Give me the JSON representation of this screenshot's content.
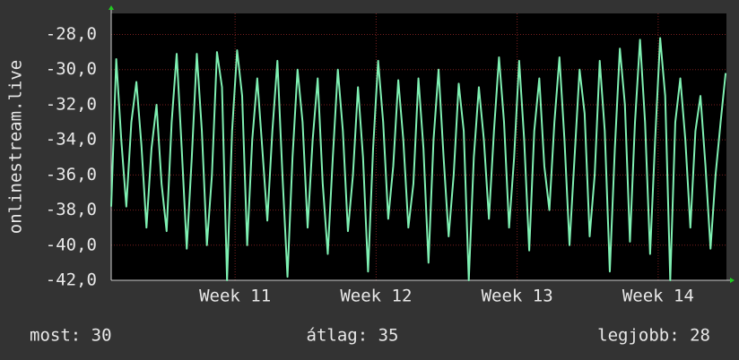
{
  "chart_data": {
    "type": "line",
    "y_label": "onlinestream.live",
    "x": [
      0,
      0.25,
      0.5,
      0.75,
      1,
      1.25,
      1.5,
      1.75,
      2,
      2.25,
      2.5,
      2.75,
      3,
      3.25,
      3.5,
      3.75,
      4,
      4.25,
      4.5,
      4.75,
      5,
      5.25,
      5.5,
      5.75,
      6,
      6.25,
      6.5,
      6.75,
      7,
      7.25,
      7.5,
      7.75,
      8,
      8.25,
      8.5,
      8.75,
      9,
      9.25,
      9.5,
      9.75,
      10,
      10.25,
      10.5,
      10.75,
      11,
      11.25,
      11.5,
      11.75,
      12,
      12.25,
      12.5,
      12.75,
      13,
      13.25,
      13.5,
      13.75,
      14,
      14.25,
      14.5,
      14.75,
      15,
      15.25,
      15.5,
      15.75,
      16,
      16.25,
      16.5,
      16.75,
      17,
      17.25,
      17.5,
      17.75,
      18,
      18.25,
      18.5,
      18.75,
      19,
      19.25,
      19.5,
      19.75,
      20,
      20.25,
      20.5,
      20.75,
      21,
      21.25,
      21.5,
      21.75,
      22,
      22.25,
      22.5,
      22.75,
      23,
      23.25,
      23.5,
      23.75,
      24,
      24.25,
      24.5,
      24.75,
      25,
      25.25,
      25.5,
      25.75,
      26,
      26.25,
      26.5,
      26.75,
      27,
      27.25,
      27.5,
      27.75,
      28,
      28.25,
      28.5,
      28.75,
      29,
      29.25,
      29.5,
      29.75,
      30,
      30.25,
      30.5
    ],
    "series": [
      {
        "color": "#7ff0b2",
        "values": [
          -37.8,
          -29.4,
          -34.0,
          -37.8,
          -33.0,
          -30.7,
          -34.3,
          -39.0,
          -34.5,
          -32.0,
          -36.5,
          -39.2,
          -33.0,
          -29.1,
          -34.5,
          -40.2,
          -35.0,
          -29.1,
          -33.5,
          -40.0,
          -36.0,
          -29.0,
          -31.0,
          -42.0,
          -33.5,
          -28.9,
          -31.5,
          -40.0,
          -34.0,
          -30.5,
          -34.5,
          -38.6,
          -33.5,
          -29.5,
          -36.0,
          -41.8,
          -35.0,
          -30.0,
          -33.0,
          -39.0,
          -34.0,
          -30.5,
          -36.5,
          -40.5,
          -35.0,
          -30.0,
          -33.5,
          -39.2,
          -36.0,
          -31.0,
          -35.0,
          -41.5,
          -34.5,
          -29.5,
          -33.0,
          -38.5,
          -35.5,
          -30.6,
          -34.0,
          -39.0,
          -36.5,
          -30.5,
          -34.5,
          -41.0,
          -34.0,
          -30.0,
          -35.0,
          -39.5,
          -36.0,
          -30.8,
          -33.5,
          -42.0,
          -35.0,
          -31.0,
          -34.0,
          -38.5,
          -33.5,
          -29.3,
          -33.0,
          -39.0,
          -35.0,
          -29.5,
          -34.0,
          -40.3,
          -33.5,
          -30.5,
          -35.5,
          -38.0,
          -33.0,
          -29.3,
          -34.0,
          -40.0,
          -35.0,
          -30.0,
          -32.5,
          -39.5,
          -36.0,
          -29.5,
          -33.5,
          -41.5,
          -34.5,
          -28.8,
          -32.0,
          -39.8,
          -33.0,
          -28.3,
          -33.0,
          -40.5,
          -34.0,
          -28.2,
          -31.5,
          -42.0,
          -33.0,
          -30.5,
          -34.0,
          -39.0,
          -33.5,
          -31.5,
          -35.5,
          -40.2,
          -36.0,
          -33.0,
          -30.2
        ]
      }
    ],
    "xlim": [
      0,
      30.54
    ],
    "xticks": [
      {
        "value": 6.15,
        "label": "Week 11"
      },
      {
        "value": 13.15,
        "label": "Week 12"
      },
      {
        "value": 20.15,
        "label": "Week 13"
      },
      {
        "value": 27.15,
        "label": "Week 14"
      }
    ],
    "ylim": [
      -42,
      -26.8
    ],
    "yticks": [
      {
        "value": -42,
        "label": "-42,0"
      },
      {
        "value": -40,
        "label": "-40,0"
      },
      {
        "value": -38,
        "label": "-38,0"
      },
      {
        "value": -36,
        "label": "-36,0"
      },
      {
        "value": -34,
        "label": "-34,0"
      },
      {
        "value": -32,
        "label": "-32,0"
      },
      {
        "value": -30,
        "label": "-30,0"
      },
      {
        "value": -28,
        "label": "-28,0"
      }
    ],
    "grid": true,
    "footer": [
      "most: 30",
      "átlag: 35",
      "legjobb: 28"
    ]
  }
}
